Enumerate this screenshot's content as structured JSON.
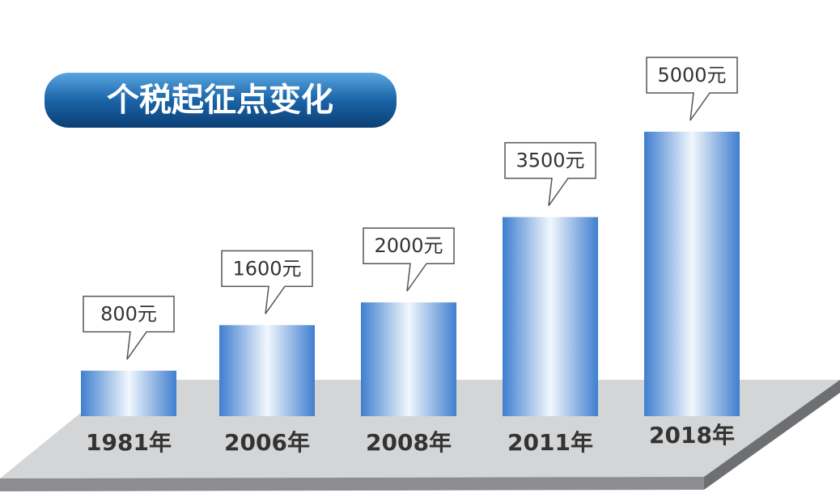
{
  "chart_data": {
    "type": "bar",
    "title": "个税起征点变化",
    "categories": [
      "1981年",
      "2006年",
      "2008年",
      "2011年",
      "2018年"
    ],
    "values": [
      800,
      1600,
      2000,
      3500,
      5000
    ],
    "value_labels": [
      "800元",
      "1600元",
      "2000元",
      "3500元",
      "5000元"
    ],
    "color": "#3f7fcf"
  }
}
